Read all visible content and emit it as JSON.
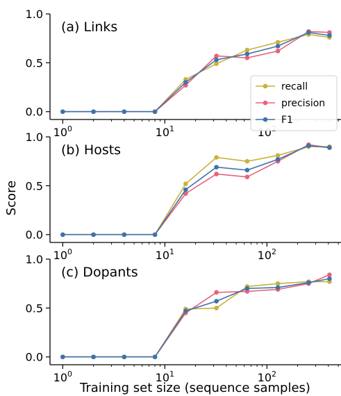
{
  "chart_data": {
    "type": "line",
    "xscale": "log",
    "ylabel": "Score",
    "xlabel": "Training set size (sequence samples)",
    "x": [
      1,
      2,
      4,
      8,
      16,
      32,
      64,
      128,
      256,
      410
    ],
    "xticks": [
      {
        "value": 1,
        "base": "10",
        "exp": "0"
      },
      {
        "value": 10,
        "base": "10",
        "exp": "1"
      },
      {
        "value": 100,
        "base": "10",
        "exp": "2"
      }
    ],
    "yticks": [
      "0.0",
      "0.5",
      "1.0"
    ],
    "ylim": [
      0,
      1
    ],
    "legend": {
      "location": "right, inside panel (a)",
      "entries": [
        "recall",
        "precision",
        "F1"
      ]
    },
    "colors": {
      "recall": "#c9b13c",
      "precision": "#e8627a",
      "F1": "#3f73ab"
    },
    "panels": [
      {
        "title": "(a) Links",
        "series": [
          {
            "name": "recall",
            "values": [
              0,
              0,
              0,
              0,
              0.33,
              0.49,
              0.63,
              0.71,
              0.79,
              0.76
            ]
          },
          {
            "name": "precision",
            "values": [
              0,
              0,
              0,
              0,
              0.27,
              0.57,
              0.55,
              0.62,
              0.82,
              0.81
            ]
          },
          {
            "name": "F1",
            "values": [
              0,
              0,
              0,
              0,
              0.3,
              0.53,
              0.59,
              0.67,
              0.81,
              0.78
            ]
          }
        ]
      },
      {
        "title": "(b) Hosts",
        "series": [
          {
            "name": "recall",
            "values": [
              0,
              0,
              0,
              0,
              0.52,
              0.79,
              0.75,
              0.81,
              0.9,
              0.9
            ]
          },
          {
            "name": "precision",
            "values": [
              0,
              0,
              0,
              0,
              0.42,
              0.62,
              0.59,
              0.75,
              0.92,
              0.89
            ]
          },
          {
            "name": "F1",
            "values": [
              0,
              0,
              0,
              0,
              0.46,
              0.69,
              0.66,
              0.77,
              0.91,
              0.89
            ]
          }
        ]
      },
      {
        "title": "(c) Dopants",
        "series": [
          {
            "name": "recall",
            "values": [
              0,
              0,
              0,
              0,
              0.49,
              0.5,
              0.72,
              0.75,
              0.77,
              0.77
            ]
          },
          {
            "name": "precision",
            "values": [
              0,
              0,
              0,
              0,
              0.45,
              0.66,
              0.67,
              0.69,
              0.75,
              0.84
            ]
          },
          {
            "name": "F1",
            "values": [
              0,
              0,
              0,
              0,
              0.47,
              0.57,
              0.7,
              0.71,
              0.76,
              0.8
            ]
          }
        ]
      }
    ]
  }
}
